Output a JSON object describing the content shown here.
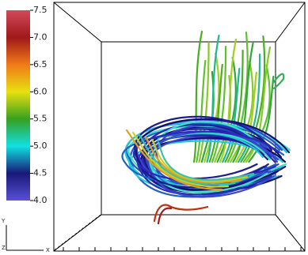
{
  "colorbar": {
    "lim": [
      4.0,
      7.5
    ],
    "ticks": [
      {
        "value": 7.5,
        "label": "7.5"
      },
      {
        "value": 7,
        "label": "7.0"
      },
      {
        "value": 6.5,
        "label": "6.5"
      },
      {
        "value": 6,
        "label": "6.0"
      },
      {
        "value": 5.5,
        "label": "5.5"
      },
      {
        "value": 5,
        "label": "5.0"
      },
      {
        "value": 4.5,
        "label": "4.5"
      },
      {
        "value": 4,
        "label": "4.0"
      }
    ],
    "colors": [
      "#d24a5a",
      "#a01818",
      "#f07a18",
      "#e8e010",
      "#38a020",
      "#10e0e0",
      "#181878",
      "#5a50d8"
    ]
  },
  "axis_labels": {
    "y": "Y",
    "z": "Z",
    "x": "X"
  }
}
